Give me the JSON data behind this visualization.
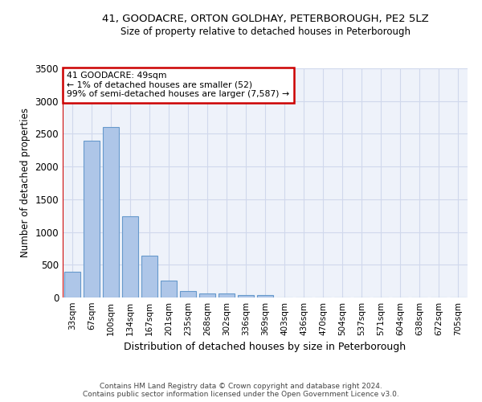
{
  "title1": "41, GOODACRE, ORTON GOLDHAY, PETERBOROUGH, PE2 5LZ",
  "title2": "Size of property relative to detached houses in Peterborough",
  "xlabel": "Distribution of detached houses by size in Peterborough",
  "ylabel": "Number of detached properties",
  "footer1": "Contains HM Land Registry data © Crown copyright and database right 2024.",
  "footer2": "Contains public sector information licensed under the Open Government Licence v3.0.",
  "annotation_line1": "41 GOODACRE: 49sqm",
  "annotation_line2": "← 1% of detached houses are smaller (52)",
  "annotation_line3": "99% of semi-detached houses are larger (7,587) →",
  "bar_color": "#aec6e8",
  "bar_edge_color": "#6699cc",
  "highlight_color": "#cc0000",
  "background_color": "#eef2fa",
  "grid_color": "#d0d8ec",
  "categories": [
    "33sqm",
    "67sqm",
    "100sqm",
    "134sqm",
    "167sqm",
    "201sqm",
    "235sqm",
    "268sqm",
    "302sqm",
    "336sqm",
    "369sqm",
    "403sqm",
    "436sqm",
    "470sqm",
    "504sqm",
    "537sqm",
    "571sqm",
    "604sqm",
    "638sqm",
    "672sqm",
    "705sqm"
  ],
  "values": [
    390,
    2400,
    2600,
    1240,
    640,
    260,
    95,
    65,
    60,
    40,
    35,
    0,
    0,
    0,
    0,
    0,
    0,
    0,
    0,
    0,
    0
  ],
  "ylim": [
    0,
    3500
  ],
  "yticks": [
    0,
    500,
    1000,
    1500,
    2000,
    2500,
    3000,
    3500
  ]
}
